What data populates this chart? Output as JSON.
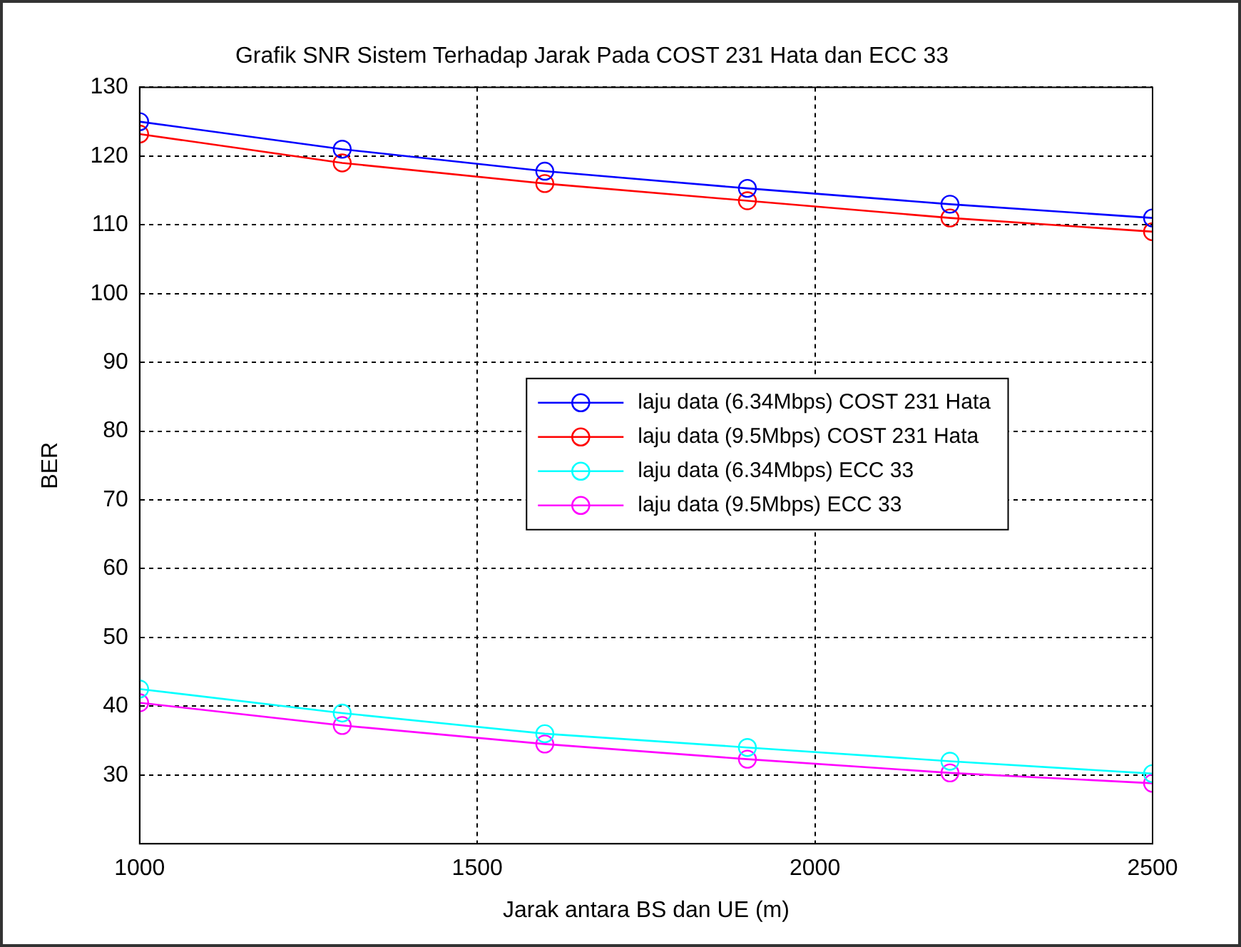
{
  "chart_data": {
    "type": "line",
    "title": "Grafik SNR Sistem Terhadap Jarak Pada COST 231 Hata dan ECC 33",
    "xlabel": "Jarak antara BS dan UE (m)",
    "ylabel": "BER",
    "x": [
      1000,
      1300,
      1600,
      1900,
      2200,
      2500
    ],
    "series": [
      {
        "name": "laju data (6.34Mbps) COST 231 Hata",
        "color": "#0000ff",
        "values": [
          125,
          121,
          117.8,
          115.3,
          113,
          111
        ]
      },
      {
        "name": "laju data (9.5Mbps) COST 231 Hata",
        "color": "#ff0000",
        "values": [
          123.2,
          119,
          116,
          113.5,
          111,
          109
        ]
      },
      {
        "name": "laju data (6.34Mbps) ECC 33",
        "color": "#00ffff",
        "values": [
          42.5,
          39,
          36,
          34,
          32,
          30.2
        ]
      },
      {
        "name": "laju data (9.5Mbps) ECC 33",
        "color": "#ff00ff",
        "values": [
          40.5,
          37.2,
          34.5,
          32.3,
          30.3,
          28.8
        ]
      }
    ],
    "xlim": [
      1000,
      2500
    ],
    "xticks": [
      1000,
      1500,
      2000,
      2500
    ],
    "ylim": [
      20,
      130
    ],
    "yticks": [
      30,
      40,
      50,
      60,
      70,
      80,
      90,
      100,
      110,
      120,
      130
    ],
    "grid": true,
    "legend": "center",
    "marker": "circle",
    "line_style": "solid"
  }
}
